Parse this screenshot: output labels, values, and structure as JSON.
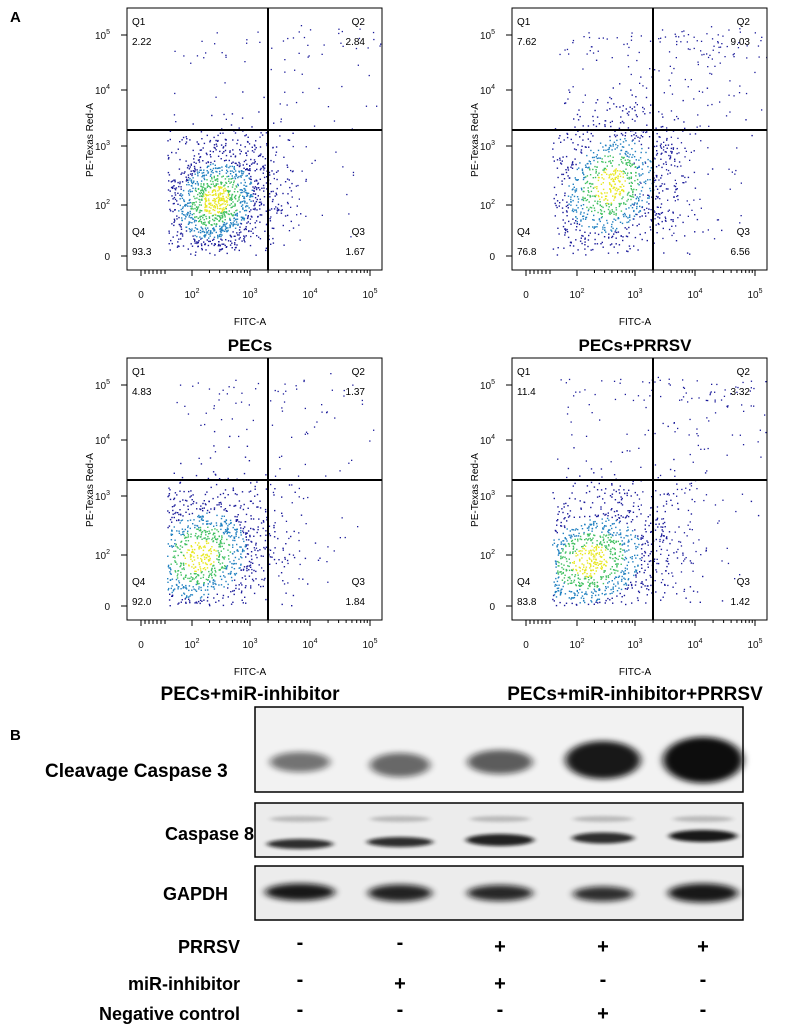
{
  "panel_labels": [
    "A",
    "B"
  ],
  "flow_axes": {
    "x_label": "FITC-A",
    "y_label": "PE-Texas Red-A",
    "xticks": [
      {
        "base": "0"
      },
      {
        "base": "10",
        "exp": "2"
      },
      {
        "base": "10",
        "exp": "3"
      },
      {
        "base": "10",
        "exp": "4"
      },
      {
        "base": "10",
        "exp": "5"
      }
    ],
    "yticks": [
      {
        "base": "0"
      },
      {
        "base": "10",
        "exp": "2"
      },
      {
        "base": "10",
        "exp": "3"
      },
      {
        "base": "10",
        "exp": "4"
      },
      {
        "base": "10",
        "exp": "5"
      }
    ]
  },
  "flow_plots": [
    {
      "title": "PECs",
      "quadrants": [
        [
          "Q1",
          "2.22"
        ],
        [
          "Q2",
          "2.84"
        ],
        [
          "Q3",
          "1.67"
        ],
        [
          "Q4",
          "93.3"
        ]
      ]
    },
    {
      "title": "PECs+PRRSV",
      "quadrants": [
        [
          "Q1",
          "7.62"
        ],
        [
          "Q2",
          "9.03"
        ],
        [
          "Q3",
          "6.56"
        ],
        [
          "Q4",
          "76.8"
        ]
      ]
    },
    {
      "title": "PECs+miR-inhibitor",
      "quadrants": [
        [
          "Q1",
          "4.83"
        ],
        [
          "Q2",
          "1.37"
        ],
        [
          "Q3",
          "1.84"
        ],
        [
          "Q4",
          "92.0"
        ]
      ]
    },
    {
      "title": "PECs+miR-inhibitor+PRRSV",
      "quadrants": [
        [
          "Q1",
          "11.4"
        ],
        [
          "Q2",
          "3.32"
        ],
        [
          "Q3",
          "1.42"
        ],
        [
          "Q4",
          "83.8"
        ]
      ]
    }
  ],
  "blot": {
    "rows": [
      "Cleavage Caspase 3",
      "Caspase 8",
      "GAPDH"
    ],
    "conditions": [
      {
        "label": "PRRSV",
        "signs": [
          "-",
          "-",
          "+",
          "+",
          "+"
        ]
      },
      {
        "label": "miR-inhibitor",
        "signs": [
          "-",
          "+",
          "+",
          "-",
          "-"
        ]
      },
      {
        "label": "Negative control",
        "signs": [
          "-",
          "-",
          "-",
          "+",
          "-"
        ]
      }
    ]
  }
}
